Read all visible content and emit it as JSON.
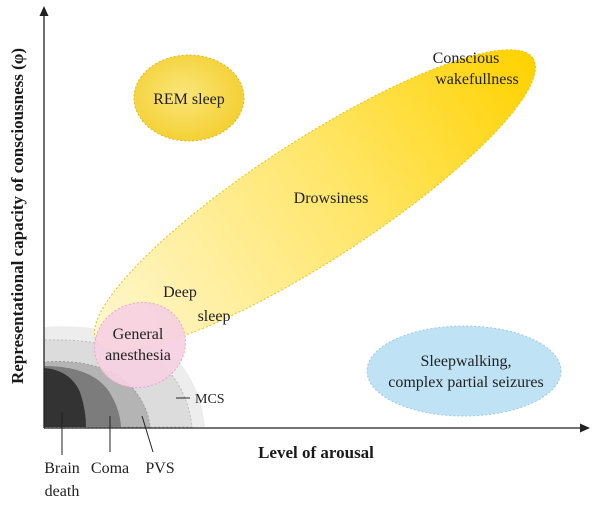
{
  "diagram": {
    "y_axis_label": "Representational capacity of consciousness (φ)",
    "x_axis_label": "Level of arousal",
    "regions": {
      "rem_sleep": "REM sleep",
      "conscious_wakefulness_line1": "Conscious",
      "conscious_wakefulness_line2": "wakefullness",
      "drowsiness": "Drowsiness",
      "deep_sleep_line1": "Deep",
      "deep_sleep_line2": "sleep",
      "general_anesthesia_line1": "General",
      "general_anesthesia_line2": "anesthesia",
      "sleepwalking_line1": "Sleepwalking,",
      "sleepwalking_line2": "complex partial seizures",
      "mcs": "MCS",
      "brain_death_line1": "Brain",
      "brain_death_line2": "death",
      "coma": "Coma",
      "pvs": "PVS"
    },
    "colors": {
      "rem_fill": "#f6d544",
      "wake_gradient_start": "#fff6c8",
      "wake_gradient_end": "#ffd500",
      "anesthesia_fill": "#f6d0e2",
      "sleepwalking_fill": "#bfe3f5",
      "brain_death": "#333333",
      "coma": "#7c7c7c",
      "pvs": "#b4b4b4",
      "mcs": "#dcdcdc",
      "mcs_outer": "#ececec"
    }
  }
}
